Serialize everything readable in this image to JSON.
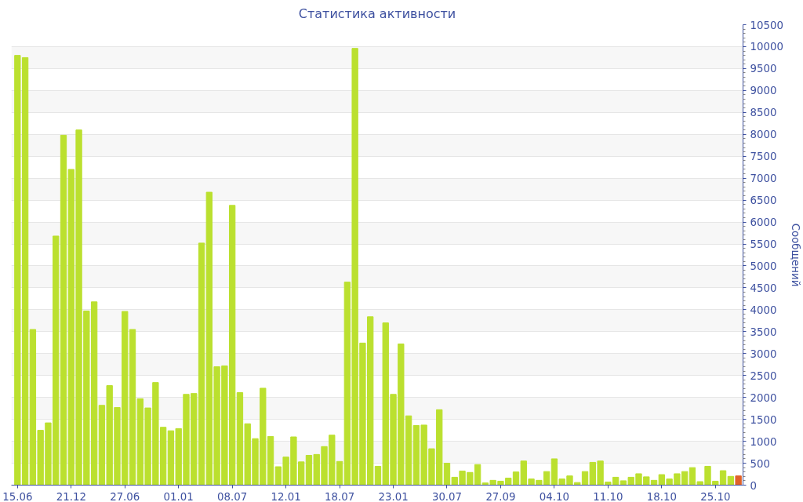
{
  "chart_data": {
    "type": "bar",
    "title": "Статистика активности",
    "ylabel": "Сообщений",
    "categories": [
      "15.06",
      null,
      null,
      null,
      null,
      null,
      null,
      "21.12",
      null,
      null,
      null,
      null,
      null,
      null,
      "27.06",
      null,
      null,
      null,
      null,
      null,
      null,
      "01.01",
      null,
      null,
      null,
      null,
      null,
      null,
      "08.07",
      null,
      null,
      null,
      null,
      null,
      null,
      "12.01",
      null,
      null,
      null,
      null,
      null,
      null,
      "18.07",
      null,
      null,
      null,
      null,
      null,
      null,
      "23.01",
      null,
      null,
      null,
      null,
      null,
      null,
      "30.07",
      null,
      null,
      null,
      null,
      null,
      null,
      "27.09",
      null,
      null,
      null,
      null,
      null,
      null,
      "04.10",
      null,
      null,
      null,
      null,
      null,
      null,
      "11.10",
      null,
      null,
      null,
      null,
      null,
      null,
      "18.10",
      null,
      null,
      null,
      null,
      null,
      null,
      "25.10",
      null,
      null,
      null
    ],
    "values": [
      9800,
      9750,
      3550,
      1250,
      1420,
      5680,
      7980,
      7200,
      8100,
      3970,
      4180,
      1820,
      2270,
      1770,
      3960,
      3550,
      1970,
      1760,
      2340,
      1320,
      1240,
      1290,
      2070,
      2090,
      5520,
      6680,
      2700,
      2720,
      6380,
      2110,
      1400,
      1060,
      2210,
      1110,
      420,
      640,
      1100,
      530,
      680,
      700,
      880,
      1140,
      540,
      4630,
      9960,
      3240,
      3840,
      430,
      3700,
      2070,
      3220,
      1580,
      1360,
      1370,
      830,
      1720,
      500,
      180,
      320,
      290,
      470,
      50,
      110,
      90,
      160,
      300,
      550,
      140,
      110,
      310,
      600,
      140,
      210,
      60,
      310,
      520,
      550,
      70,
      180,
      100,
      180,
      260,
      190,
      110,
      240,
      140,
      260,
      310,
      400,
      80,
      430,
      90,
      330,
      200,
      210
    ],
    "colors": [
      "#bbe02f",
      "#bbe02f",
      "#bbe02f",
      "#bbe02f",
      "#bbe02f",
      "#bbe02f",
      "#bbe02f",
      "#bbe02f",
      "#bbe02f",
      "#bbe02f",
      "#bbe02f",
      "#bbe02f",
      "#bbe02f",
      "#bbe02f",
      "#bbe02f",
      "#bbe02f",
      "#bbe02f",
      "#bbe02f",
      "#bbe02f",
      "#bbe02f",
      "#bbe02f",
      "#bbe02f",
      "#bbe02f",
      "#bbe02f",
      "#bbe02f",
      "#bbe02f",
      "#bbe02f",
      "#bbe02f",
      "#bbe02f",
      "#bbe02f",
      "#bbe02f",
      "#bbe02f",
      "#bbe02f",
      "#bbe02f",
      "#bbe02f",
      "#bbe02f",
      "#bbe02f",
      "#bbe02f",
      "#bbe02f",
      "#bbe02f",
      "#bbe02f",
      "#bbe02f",
      "#bbe02f",
      "#bbe02f",
      "#bbe02f",
      "#bbe02f",
      "#bbe02f",
      "#bbe02f",
      "#bbe02f",
      "#bbe02f",
      "#bbe02f",
      "#bbe02f",
      "#bbe02f",
      "#bbe02f",
      "#bbe02f",
      "#bbe02f",
      "#bbe02f",
      "#bbe02f",
      "#bbe02f",
      "#bbe02f",
      "#bbe02f",
      "#bbe02f",
      "#bbe02f",
      "#bbe02f",
      "#bbe02f",
      "#bbe02f",
      "#bbe02f",
      "#bbe02f",
      "#bbe02f",
      "#bbe02f",
      "#bbe02f",
      "#bbe02f",
      "#bbe02f",
      "#bbe02f",
      "#bbe02f",
      "#bbe02f",
      "#bbe02f",
      "#bbe02f",
      "#bbe02f",
      "#bbe02f",
      "#bbe02f",
      "#bbe02f",
      "#bbe02f",
      "#bbe02f",
      "#bbe02f",
      "#bbe02f",
      "#bbe02f",
      "#bbe02f",
      "#bbe02f",
      "#bbe02f",
      "#bbe02f",
      "#bbe02f",
      "#bbe02f",
      "#bbe02f",
      "#e0622a"
    ],
    "ylim": [
      0,
      10500
    ],
    "yticks": [
      0,
      500,
      1000,
      1500,
      2000,
      2500,
      3000,
      3500,
      4000,
      4500,
      5000,
      5500,
      6000,
      6500,
      7000,
      7500,
      8000,
      8500,
      9000,
      9500,
      10000,
      10500
    ],
    "grid": "y"
  }
}
